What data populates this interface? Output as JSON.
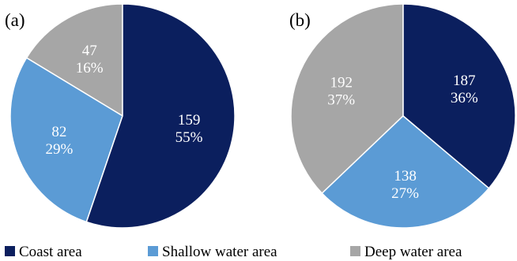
{
  "chart_data": [
    {
      "type": "pie",
      "panel_label": "(a)",
      "slices": [
        {
          "category": "Coast area",
          "value": 159,
          "percent": "55%",
          "color": "#0b1f5e"
        },
        {
          "category": "Shallow water area",
          "value": 82,
          "percent": "29%",
          "color": "#5b9bd5"
        },
        {
          "category": "Deep water area",
          "value": 47,
          "percent": "16%",
          "color": "#a6a6a6"
        }
      ]
    },
    {
      "type": "pie",
      "panel_label": "(b)",
      "slices": [
        {
          "category": "Coast area",
          "value": 187,
          "percent": "36%",
          "color": "#0b1f5e"
        },
        {
          "category": "Shallow water area",
          "value": 138,
          "percent": "27%",
          "color": "#5b9bd5"
        },
        {
          "category": "Deep water area",
          "value": 192,
          "percent": "37%",
          "color": "#a6a6a6"
        }
      ]
    }
  ],
  "legend": {
    "placement": "bottom",
    "items": [
      {
        "label": "Coast area",
        "color": "#0b1f5e"
      },
      {
        "label": "Shallow water area",
        "color": "#5b9bd5"
      },
      {
        "label": "Deep water area",
        "color": "#a6a6a6"
      }
    ]
  }
}
